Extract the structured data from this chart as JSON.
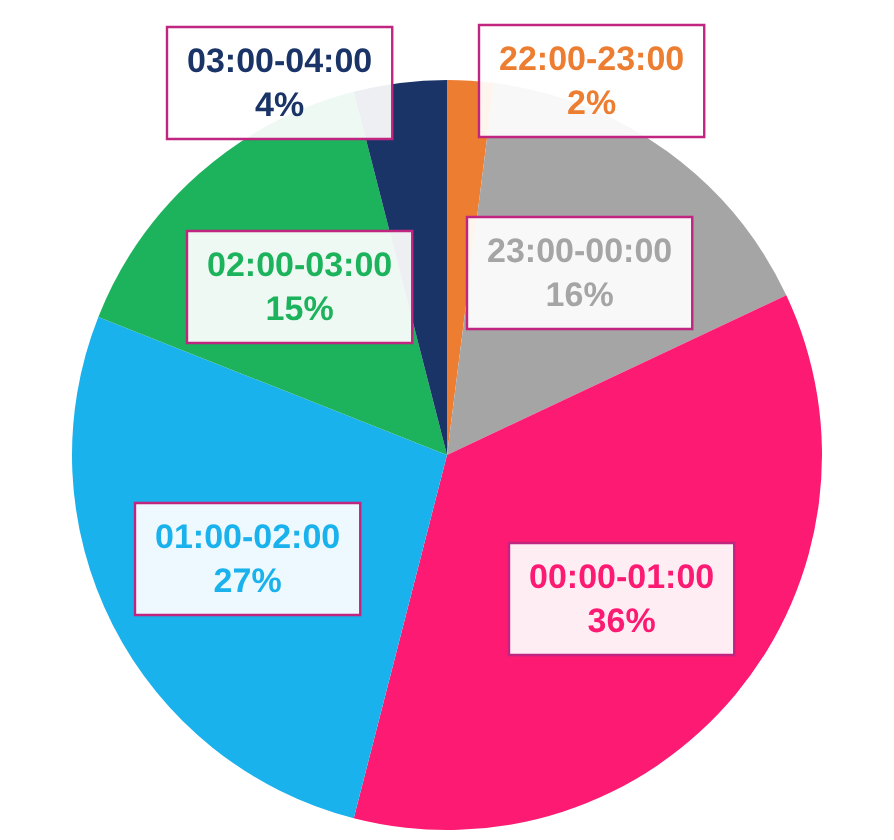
{
  "chart_data": {
    "type": "pie",
    "categories": [
      "22:00-23:00",
      "23:00-00:00",
      "00:00-01:00",
      "01:00-02:00",
      "02:00-03:00",
      "03:00-04:00"
    ],
    "values": [
      2,
      16,
      36,
      27,
      15,
      4
    ],
    "colors": [
      "#ed7d31",
      "#a5a5a5",
      "#fc1a72",
      "#1ab2ec",
      "#1db35c",
      "#1a3468"
    ],
    "value_labels": [
      "2%",
      "16%",
      "36%",
      "27%",
      "15%",
      "4%"
    ],
    "legend": false
  }
}
